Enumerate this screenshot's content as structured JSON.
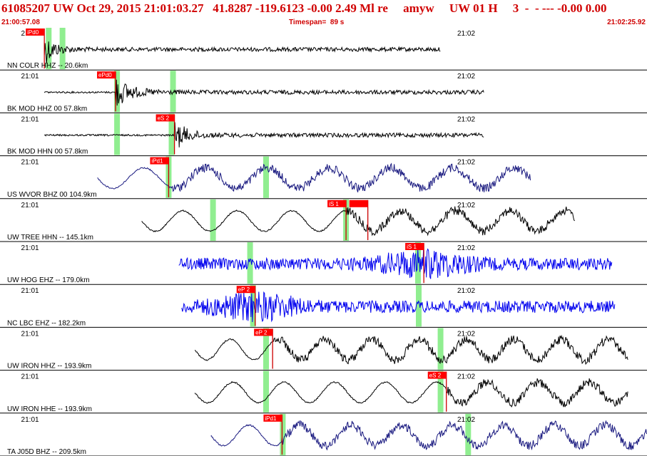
{
  "header": {
    "event_line": "61085207 UW Oct 29, 2015 21:01:03.27   41.8287 -119.6123 -0.00 2.49 Ml re     amyw     UW 01 H     3  -  - --- -0.00 0.00",
    "start_time": "21:00:57.08",
    "timespan": "Timespan=  89 s",
    "end_time": "21:02:25.92"
  },
  "colors": {
    "text_accent": "#d00000",
    "pick_box": "#ff0000",
    "pick_line": "#cc0000",
    "window_marker": "#90ee90",
    "trace_black": "#000000",
    "trace_navy": "#1a1a80",
    "trace_blue": "#0000ee"
  },
  "time_axis": {
    "start_s": 0,
    "span_s": 89,
    "tick_1_label": "21:01",
    "tick_1_s": 2.9,
    "tick_2_label": "21:02",
    "tick_2_s": 62.9
  },
  "channels": [
    {
      "label": "NN COLR HHZ -- 20.6km",
      "color": "#000000",
      "kind": "hf",
      "start_s": 6.1,
      "end_s": 60.6,
      "pick": {
        "text": "iPd0",
        "time_s": 6.1
      },
      "pick2": null,
      "markers_s": [
        6.7,
        8.6
      ],
      "decay": 0.07,
      "period": 0
    },
    {
      "label": "BK MOD HHZ 00 57.8km",
      "color": "#000000",
      "kind": "hf",
      "start_s": 6.1,
      "end_s": 66.6,
      "pick": {
        "text": "ePd0",
        "time_s": 15.9
      },
      "pick2": null,
      "markers_s": [
        16.1,
        23.8
      ],
      "decay": 0.05,
      "period": 0
    },
    {
      "label": "BK MOD HHN 00 57.8km",
      "color": "#000000",
      "kind": "hf",
      "start_s": 6.1,
      "end_s": 66.6,
      "pick": {
        "text": "eS 2",
        "time_s": 24.0
      },
      "pick2": null,
      "markers_s": [
        16.1,
        23.6
      ],
      "decay": 0.06,
      "period": 0
    },
    {
      "label": "US WVOR BHZ 00 104.9km",
      "color": "#1a1a80",
      "kind": "lf",
      "start_s": 13.4,
      "end_s": 73.0,
      "pick": {
        "text": "iPd1",
        "time_s": 23.2
      },
      "pick2": null,
      "markers_s": [
        23.2,
        36.6
      ],
      "decay": 0,
      "period": 8.5
    },
    {
      "label": "UW TREE HHN -- 145.1km",
      "color": "#000000",
      "kind": "lf",
      "start_s": 19.5,
      "end_s": 79.1,
      "pick": {
        "text": "iS 1",
        "time_s": 47.6
      },
      "pick2": {
        "text": "",
        "time_s": 50.6
      },
      "markers_s": [
        29.3,
        47.6
      ],
      "decay": 0,
      "period": 7.5
    },
    {
      "label": "UW HOG EHZ -- 179.0km",
      "color": "#0000ee",
      "kind": "hfc",
      "start_s": 24.6,
      "end_s": 84.2,
      "pick": {
        "text": "iS 1",
        "time_s": 58.3
      },
      "pick2": null,
      "markers_s": [
        34.4,
        57.5
      ],
      "decay": 0,
      "period": 0
    },
    {
      "label": "NC LBC EHZ -- 182.2km",
      "color": "#0000ee",
      "kind": "hfc",
      "start_s": 25.0,
      "end_s": 84.6,
      "pick": {
        "text": "eP 2",
        "time_s": 35.1
      },
      "pick2": null,
      "markers_s": [
        34.8,
        57.6
      ],
      "decay": 0,
      "period": 0
    },
    {
      "label": "UW IRON HHZ -- 193.9km",
      "color": "#000000",
      "kind": "lf",
      "start_s": 26.8,
      "end_s": 86.4,
      "pick": {
        "text": "eP 2",
        "time_s": 37.5
      },
      "pick2": null,
      "markers_s": [
        36.6,
        60.6
      ],
      "decay": 0,
      "period": 6.5
    },
    {
      "label": "UW IRON HHE -- 193.9km",
      "color": "#000000",
      "kind": "lf",
      "start_s": 26.8,
      "end_s": 86.4,
      "pick": {
        "text": "eS 2",
        "time_s": 61.4
      },
      "pick2": null,
      "markers_s": [
        36.6,
        60.6
      ],
      "decay": 0,
      "period": 7.0
    },
    {
      "label": "TA J05D BHZ -- 209.5km",
      "color": "#1a1a80",
      "kind": "lf",
      "start_s": 29.0,
      "end_s": 89.0,
      "pick": {
        "text": "iPd1",
        "time_s": 38.8
      },
      "pick2": null,
      "markers_s": [
        38.9,
        64.4
      ],
      "decay": 0,
      "period": 7.0
    }
  ]
}
